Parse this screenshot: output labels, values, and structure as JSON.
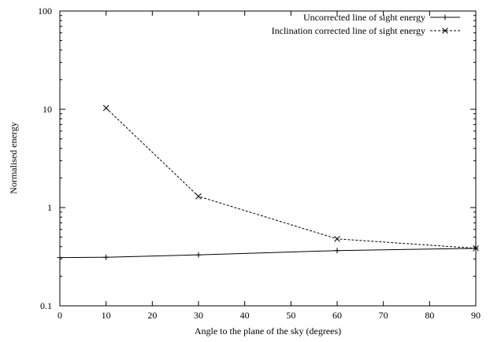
{
  "chart_data": {
    "type": "line",
    "title": "",
    "xlabel": "Angle to the plane of the sky (degrees)",
    "ylabel": "Normalised energy",
    "xlim": [
      0,
      90
    ],
    "ylim": [
      0.1,
      100
    ],
    "yscale": "log",
    "grid": false,
    "legend_position": "top-right",
    "x_ticks": [
      0,
      10,
      20,
      30,
      40,
      50,
      60,
      70,
      80,
      90
    ],
    "x_tick_labels": [
      "0",
      "10",
      "20",
      "30",
      "40",
      "50",
      "60",
      "70",
      "80",
      "90"
    ],
    "y_ticks": [
      0.1,
      1,
      10,
      100
    ],
    "y_tick_labels": [
      "0.1",
      "1",
      "10",
      "100"
    ],
    "series": [
      {
        "name": "Uncorrected line of sight energy",
        "line_style": "solid",
        "marker": "plus",
        "x": [
          0,
          10,
          30,
          60,
          90
        ],
        "y": [
          0.31,
          0.312,
          0.33,
          0.365,
          0.385
        ]
      },
      {
        "name": "Inclination corrected line of sight energy",
        "line_style": "dashed",
        "marker": "cross",
        "x": [
          10,
          30,
          60,
          90
        ],
        "y": [
          10.3,
          1.3,
          0.48,
          0.385
        ]
      }
    ]
  }
}
